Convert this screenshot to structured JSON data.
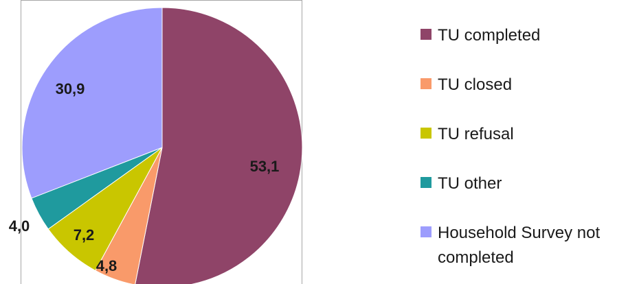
{
  "chart_data": {
    "type": "pie",
    "categories": [
      "TU completed",
      "TU closed",
      "TU refusal",
      "TU other",
      "Household Survey not completed"
    ],
    "values": [
      53.1,
      4.8,
      7.2,
      4.0,
      30.9
    ],
    "value_labels": [
      "53,1",
      "4,8",
      "7,2",
      "4,0",
      "30,9"
    ],
    "colors": [
      "#8f4468",
      "#f99a6a",
      "#c9c600",
      "#1f9a9e",
      "#9d9dfd"
    ],
    "legend_position": "right",
    "start_angle": "12 o'clock, clockwise"
  }
}
